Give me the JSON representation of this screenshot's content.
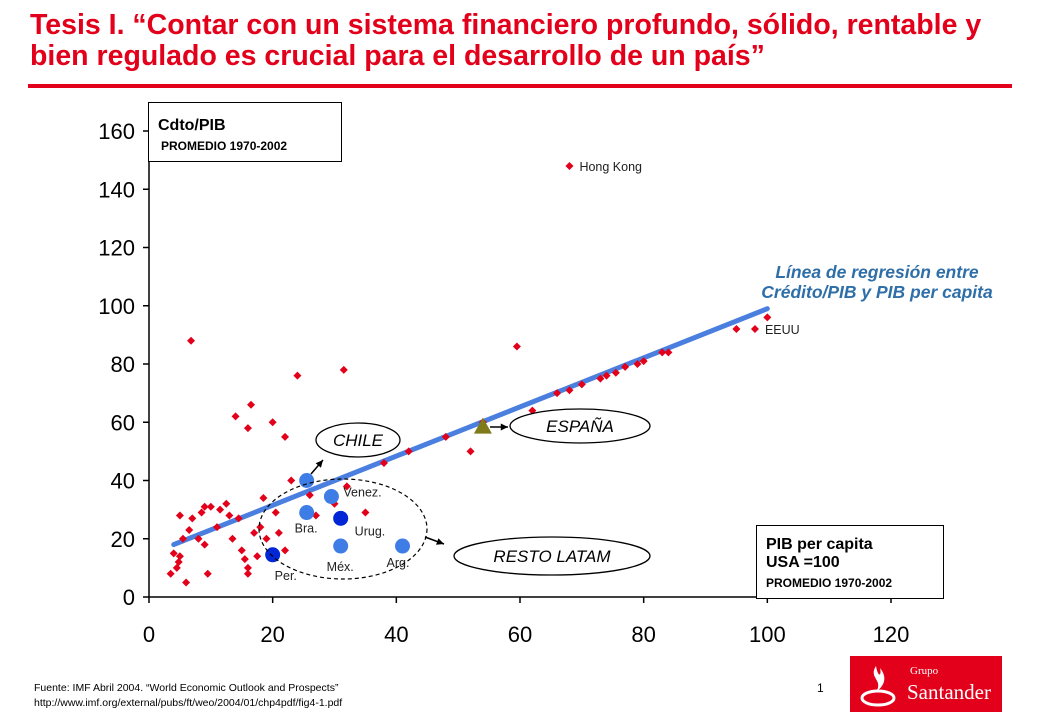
{
  "page": {
    "title": "Tesis I. “Contar con un sistema financiero profundo, sólido, rentable y bien regulado es crucial para el desarrollo de un país”",
    "y_box_title": "Cdto/PIB",
    "y_box_subtitle": "PROMEDIO 1970-2002",
    "x_box_line1": "PIB per capita",
    "x_box_line2": "USA =100",
    "x_box_subtitle": "PROMEDIO 1970-2002",
    "regression_label": "Línea de regresión entre Crédito/PIB y PIB per capita",
    "source_line1": "Fuente: IMF Abril 2004. “World Economic Outlook and Prospects”",
    "source_line2": "http://www.imf.org/external/pubs/ft/weo/2004/01/chp4pdf/fig4-1.pdf",
    "page_number": "1",
    "logo_grupo": "Grupo",
    "logo_name": "Santander",
    "colors": {
      "accent": "#e2001a",
      "regression": "#4a7fe0",
      "latam_points": "#3f7de6",
      "highlight_points": "#0026d6",
      "spain": "#7f7a1a",
      "label_blue": "#2f6fa8"
    }
  },
  "chart_data": {
    "type": "scatter",
    "xlim": [
      0,
      120
    ],
    "ylim": [
      0,
      160
    ],
    "x_ticks": [
      0,
      20,
      40,
      60,
      80,
      100,
      120
    ],
    "y_ticks": [
      0,
      20,
      40,
      60,
      80,
      100,
      120,
      140,
      160
    ],
    "grid": false,
    "regression": {
      "x": [
        4,
        100
      ],
      "y": [
        18,
        99
      ]
    },
    "countries": [
      [
        3.5,
        8
      ],
      [
        4,
        15
      ],
      [
        4.5,
        10
      ],
      [
        4.8,
        12
      ],
      [
        5,
        28
      ],
      [
        5,
        14
      ],
      [
        5.5,
        20
      ],
      [
        6,
        5
      ],
      [
        6.5,
        23
      ],
      [
        7,
        27
      ],
      [
        6.8,
        88
      ],
      [
        8,
        20
      ],
      [
        8.5,
        29
      ],
      [
        9,
        31
      ],
      [
        9,
        18
      ],
      [
        9.5,
        8
      ],
      [
        10,
        31
      ],
      [
        11,
        24
      ],
      [
        11.5,
        30
      ],
      [
        12.5,
        32
      ],
      [
        13,
        28
      ],
      [
        13.5,
        20
      ],
      [
        14,
        62
      ],
      [
        14.5,
        27
      ],
      [
        15,
        16
      ],
      [
        15.5,
        13
      ],
      [
        16,
        58
      ],
      [
        16,
        10
      ],
      [
        16,
        8
      ],
      [
        16.5,
        66
      ],
      [
        17,
        22
      ],
      [
        17.5,
        14
      ],
      [
        18,
        24
      ],
      [
        18.5,
        34
      ],
      [
        19,
        20
      ],
      [
        20,
        60
      ],
      [
        20.5,
        29
      ],
      [
        21,
        22
      ],
      [
        22,
        55
      ],
      [
        22,
        16
      ],
      [
        23,
        40
      ],
      [
        24,
        76
      ],
      [
        26,
        35
      ],
      [
        27,
        28
      ],
      [
        30,
        32
      ],
      [
        31.5,
        78
      ],
      [
        32,
        38
      ],
      [
        35,
        29
      ],
      [
        38,
        46
      ],
      [
        42,
        50
      ],
      [
        48,
        55
      ],
      [
        52,
        50
      ],
      [
        54,
        60
      ],
      [
        59.5,
        86
      ],
      [
        62,
        64
      ],
      [
        66,
        70
      ],
      [
        68,
        71
      ],
      [
        70,
        73
      ],
      [
        73,
        75
      ],
      [
        74,
        76
      ],
      [
        75.5,
        77
      ],
      [
        77,
        79
      ],
      [
        79,
        80
      ],
      [
        80,
        81
      ],
      [
        83,
        84
      ],
      [
        84,
        84
      ],
      [
        95,
        92
      ],
      [
        100,
        96
      ]
    ],
    "labeled_points": [
      {
        "name": "Hong Kong",
        "x": 68,
        "y": 148
      },
      {
        "name": "EEUU",
        "x": 98,
        "y": 92
      }
    ],
    "latam": [
      {
        "name": "",
        "x": 25.5,
        "y": 40
      },
      {
        "name": "Venez.",
        "x": 29.5,
        "y": 34.5
      },
      {
        "name": "Bra.",
        "x": 25.5,
        "y": 29
      },
      {
        "name": "Urug.",
        "x": 31,
        "y": 27
      },
      {
        "name": "Méx.",
        "x": 31,
        "y": 17.5
      },
      {
        "name": "Arg.",
        "x": 41,
        "y": 17.5
      },
      {
        "name": "Per.",
        "x": 20,
        "y": 14.5
      }
    ],
    "spain": {
      "x": 54,
      "y": 58.5
    },
    "callouts": {
      "chile": "CHILE",
      "espana": "ESPAÑA",
      "resto_latam": "RESTO LATAM"
    }
  }
}
